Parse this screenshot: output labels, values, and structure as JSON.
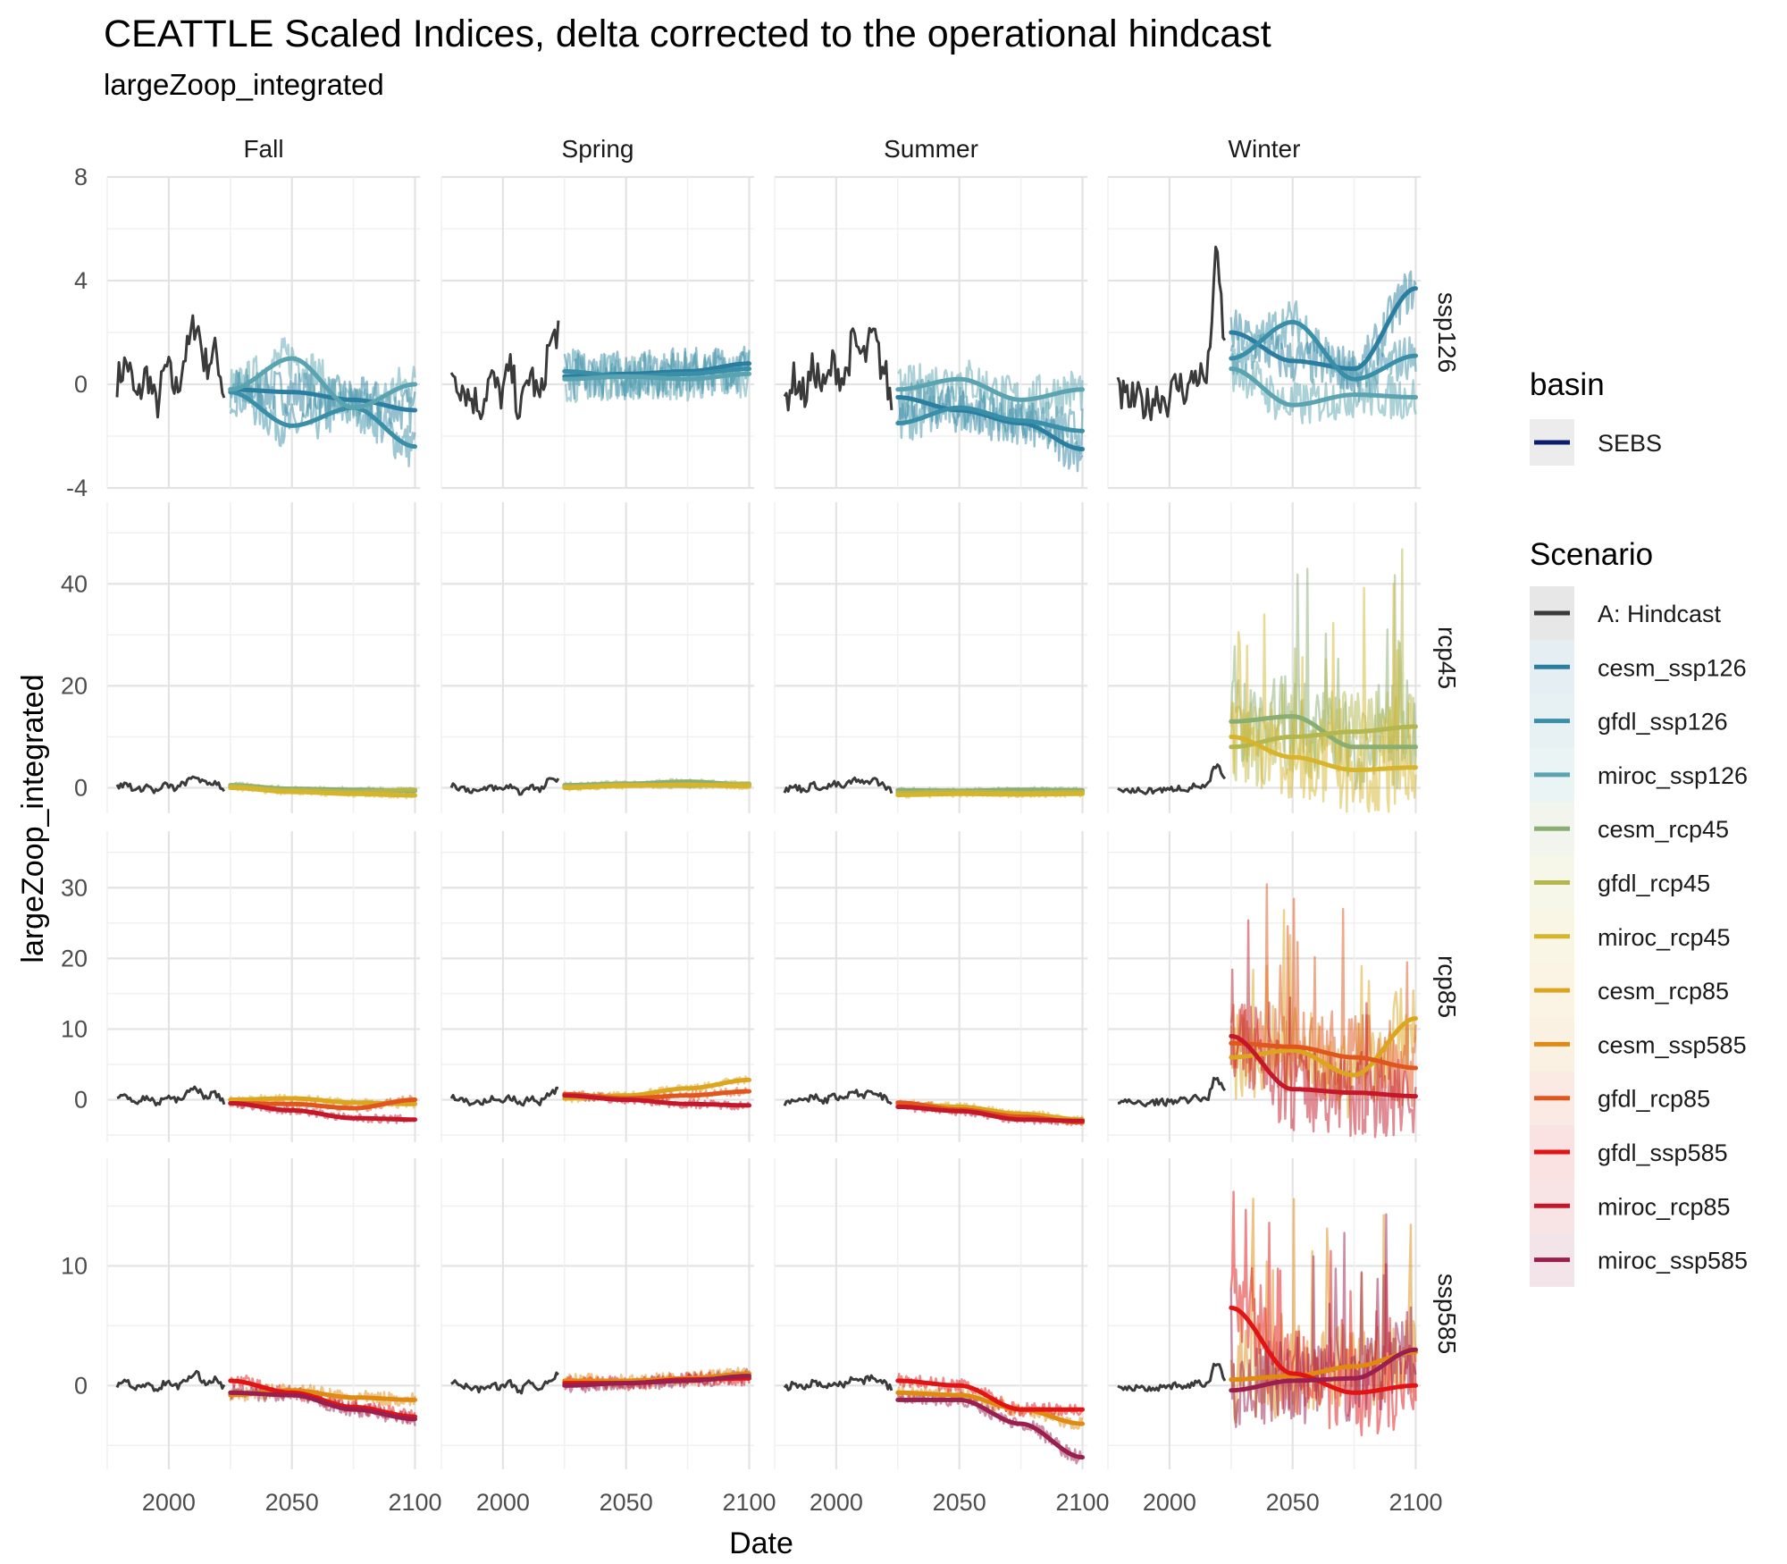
{
  "chart_data": {
    "type": "line",
    "title": "CEATTLE Scaled Indices, delta corrected to the operational hindcast",
    "subtitle": "largeZoop_integrated",
    "xlabel": "Date",
    "ylabel": "largeZoop_integrated",
    "grid": true,
    "legend_placement": "right",
    "facet_cols": [
      "Fall",
      "Spring",
      "Summer",
      "Winter"
    ],
    "facet_rows": [
      "ssp126",
      "rcp45",
      "rcp85",
      "ssp585"
    ],
    "xlim": [
      1975,
      2102
    ],
    "x_ticks": [
      2000,
      2050,
      2100
    ],
    "row_axes": {
      "ssp126": {
        "ylim": [
          -4,
          8
        ],
        "ticks": [
          -4,
          0,
          4,
          8
        ],
        "tick_labels": [
          "-4",
          "0",
          "4",
          "8"
        ]
      },
      "rcp45": {
        "ylim": [
          -5,
          56
        ],
        "ticks": [
          0,
          20,
          40
        ],
        "tick_labels": [
          "0",
          "20",
          "40"
        ]
      },
      "rcp85": {
        "ylim": [
          -6,
          38
        ],
        "ticks": [
          0,
          10,
          20,
          30
        ],
        "tick_labels": [
          "0",
          "10",
          "20",
          "30"
        ]
      },
      "ssp585": {
        "ylim": [
          -7,
          19
        ],
        "ticks": [
          0,
          10
        ],
        "tick_labels": [
          "0",
          "10"
        ]
      }
    },
    "legend_basin": {
      "title": "basin",
      "entries": [
        {
          "label": "SEBS",
          "color": "#0b1e6e"
        }
      ]
    },
    "legend_scenario": {
      "title": "Scenario",
      "entries": [
        {
          "label": "A: Hindcast",
          "color": "#3a3a3a"
        },
        {
          "label": "cesm_ssp126",
          "color": "#2a7fa0"
        },
        {
          "label": "gfdl_ssp126",
          "color": "#3a8fa8"
        },
        {
          "label": "miroc_ssp126",
          "color": "#5aa3b0"
        },
        {
          "label": "cesm_rcp45",
          "color": "#8aad72"
        },
        {
          "label": "gfdl_rcp45",
          "color": "#b3b74e"
        },
        {
          "label": "miroc_rcp45",
          "color": "#d6b52c"
        },
        {
          "label": "cesm_rcp85",
          "color": "#dca51e"
        },
        {
          "label": "cesm_ssp585",
          "color": "#e08a12"
        },
        {
          "label": "gfdl_rcp85",
          "color": "#e0561c"
        },
        {
          "label": "gfdl_ssp585",
          "color": "#e01414"
        },
        {
          "label": "miroc_rcp85",
          "color": "#c4182a"
        },
        {
          "label": "miroc_ssp585",
          "color": "#9a1e4e"
        }
      ]
    },
    "hindcast": {
      "Fall": {
        "x": [
          1979,
          1983,
          1987,
          1991,
          1995,
          1999,
          2003,
          2007,
          2011,
          2015,
          2019,
          2023
        ],
        "y": [
          0.2,
          0.8,
          -0.6,
          0.4,
          -0.8,
          0.6,
          -0.2,
          1.2,
          2.4,
          0.8,
          1.2,
          -0.4
        ]
      },
      "Spring": {
        "x": [
          1979,
          1983,
          1987,
          1991,
          1995,
          1999,
          2003,
          2007,
          2011,
          2015,
          2019,
          2023
        ],
        "y": [
          0.6,
          0.0,
          -0.5,
          -0.8,
          0.2,
          -0.4,
          0.5,
          -1.0,
          0.4,
          -0.6,
          1.5,
          2.2
        ]
      },
      "Summer": {
        "x": [
          1979,
          1983,
          1987,
          1991,
          1995,
          1999,
          2003,
          2007,
          2011,
          2015,
          2019,
          2023
        ],
        "y": [
          -0.6,
          0.2,
          -0.4,
          0.6,
          -0.2,
          0.8,
          0.2,
          1.6,
          1.0,
          1.8,
          0.6,
          -0.8
        ]
      },
      "Winter": {
        "x": [
          1979,
          1983,
          1987,
          1991,
          1995,
          1999,
          2003,
          2007,
          2011,
          2015,
          2019,
          2023
        ],
        "y": [
          -0.4,
          -0.6,
          -0.6,
          -0.8,
          -0.4,
          -0.6,
          0.0,
          -0.2,
          0.4,
          0.2,
          4.7,
          1.4
        ]
      }
    },
    "trends": {
      "ssp126": {
        "Fall": [
          {
            "name": "cesm_ssp126",
            "x": [
              2025,
              2050,
              2075,
              2100
            ],
            "y": [
              -0.2,
              -0.3,
              -0.6,
              -1.0
            ]
          },
          {
            "name": "gfdl_ssp126",
            "x": [
              2025,
              2050,
              2075,
              2100
            ],
            "y": [
              -0.3,
              -1.6,
              -0.9,
              -2.4
            ]
          },
          {
            "name": "miroc_ssp126",
            "x": [
              2025,
              2050,
              2075,
              2100
            ],
            "y": [
              -0.2,
              1.0,
              -0.9,
              0.0
            ]
          }
        ],
        "Spring": [
          {
            "name": "cesm_ssp126",
            "x": [
              2025,
              2050,
              2075,
              2100
            ],
            "y": [
              0.3,
              0.4,
              0.5,
              0.8
            ]
          },
          {
            "name": "gfdl_ssp126",
            "x": [
              2025,
              2050,
              2075,
              2100
            ],
            "y": [
              0.5,
              0.3,
              0.4,
              0.6
            ]
          },
          {
            "name": "miroc_ssp126",
            "x": [
              2025,
              2050,
              2075,
              2100
            ],
            "y": [
              0.2,
              0.3,
              0.2,
              0.4
            ]
          }
        ],
        "Summer": [
          {
            "name": "cesm_ssp126",
            "x": [
              2025,
              2050,
              2075,
              2100
            ],
            "y": [
              -0.5,
              -1.0,
              -1.5,
              -2.5
            ]
          },
          {
            "name": "gfdl_ssp126",
            "x": [
              2025,
              2050,
              2075,
              2100
            ],
            "y": [
              -1.5,
              -0.9,
              -1.4,
              -1.8
            ]
          },
          {
            "name": "miroc_ssp126",
            "x": [
              2025,
              2050,
              2075,
              2100
            ],
            "y": [
              -0.2,
              0.2,
              -0.6,
              -0.2
            ]
          }
        ],
        "Winter": [
          {
            "name": "cesm_ssp126",
            "x": [
              2025,
              2050,
              2075,
              2100
            ],
            "y": [
              2.0,
              0.9,
              0.6,
              3.7
            ]
          },
          {
            "name": "gfdl_ssp126",
            "x": [
              2025,
              2050,
              2075,
              2100
            ],
            "y": [
              1.0,
              2.4,
              0.2,
              1.1
            ]
          },
          {
            "name": "miroc_ssp126",
            "x": [
              2025,
              2050,
              2075,
              2100
            ],
            "y": [
              0.6,
              -0.8,
              -0.4,
              -0.5
            ]
          }
        ]
      },
      "rcp45": {
        "Fall": [
          {
            "name": "cesm_rcp45",
            "x": [
              2025,
              2050,
              2075,
              2100
            ],
            "y": [
              0.5,
              -0.2,
              -0.4,
              -0.6
            ]
          },
          {
            "name": "gfdl_rcp45",
            "x": [
              2025,
              2050,
              2075,
              2100
            ],
            "y": [
              0.3,
              -0.5,
              -0.8,
              -0.4
            ]
          },
          {
            "name": "miroc_rcp45",
            "x": [
              2025,
              2050,
              2075,
              2100
            ],
            "y": [
              0.0,
              -0.8,
              -1.2,
              -1.5
            ]
          }
        ],
        "Spring": [
          {
            "name": "cesm_rcp45",
            "x": [
              2025,
              2050,
              2075,
              2100
            ],
            "y": [
              0.5,
              0.8,
              1.2,
              0.6
            ]
          },
          {
            "name": "gfdl_rcp45",
            "x": [
              2025,
              2050,
              2075,
              2100
            ],
            "y": [
              0.2,
              0.6,
              0.4,
              0.8
            ]
          },
          {
            "name": "miroc_rcp45",
            "x": [
              2025,
              2050,
              2075,
              2100
            ],
            "y": [
              0.0,
              0.4,
              0.6,
              0.3
            ]
          }
        ],
        "Summer": [
          {
            "name": "cesm_rcp45",
            "x": [
              2025,
              2050,
              2075,
              2100
            ],
            "y": [
              -0.5,
              -0.6,
              -0.4,
              -0.5
            ]
          },
          {
            "name": "gfdl_rcp45",
            "x": [
              2025,
              2050,
              2075,
              2100
            ],
            "y": [
              -1.0,
              -0.8,
              -1.0,
              -0.8
            ]
          },
          {
            "name": "miroc_rcp45",
            "x": [
              2025,
              2050,
              2075,
              2100
            ],
            "y": [
              -1.4,
              -1.2,
              -1.3,
              -1.2
            ]
          }
        ],
        "Winter": [
          {
            "name": "cesm_rcp45",
            "x": [
              2025,
              2050,
              2075,
              2100
            ],
            "y": [
              13,
              14,
              8,
              8
            ]
          },
          {
            "name": "gfdl_rcp45",
            "x": [
              2025,
              2050,
              2075,
              2100
            ],
            "y": [
              8,
              10,
              11,
              12
            ]
          },
          {
            "name": "miroc_rcp45",
            "x": [
              2025,
              2050,
              2075,
              2100
            ],
            "y": [
              10,
              6,
              3.5,
              4
            ]
          }
        ]
      },
      "rcp85": {
        "Fall": [
          {
            "name": "cesm_rcp85",
            "x": [
              2025,
              2050,
              2075,
              2100
            ],
            "y": [
              0.0,
              0.2,
              -0.4,
              -0.6
            ]
          },
          {
            "name": "gfdl_rcp85",
            "x": [
              2025,
              2050,
              2075,
              2100
            ],
            "y": [
              -0.5,
              -0.6,
              -1.2,
              0.0
            ]
          },
          {
            "name": "miroc_rcp85",
            "x": [
              2025,
              2050,
              2075,
              2100
            ],
            "y": [
              -0.5,
              -1.5,
              -2.6,
              -2.8
            ]
          }
        ],
        "Spring": [
          {
            "name": "cesm_rcp85",
            "x": [
              2025,
              2050,
              2075,
              2100
            ],
            "y": [
              0.2,
              0.6,
              1.6,
              2.8
            ]
          },
          {
            "name": "gfdl_rcp85",
            "x": [
              2025,
              2050,
              2075,
              2100
            ],
            "y": [
              0.8,
              0.2,
              0.6,
              1.2
            ]
          },
          {
            "name": "miroc_rcp85",
            "x": [
              2025,
              2050,
              2075,
              2100
            ],
            "y": [
              0.6,
              0.0,
              -0.6,
              -0.8
            ]
          }
        ],
        "Summer": [
          {
            "name": "cesm_rcp85",
            "x": [
              2025,
              2050,
              2075,
              2100
            ],
            "y": [
              -0.6,
              -1.0,
              -2.0,
              -2.8
            ]
          },
          {
            "name": "gfdl_rcp85",
            "x": [
              2025,
              2050,
              2075,
              2100
            ],
            "y": [
              -0.4,
              -1.4,
              -2.4,
              -3.2
            ]
          },
          {
            "name": "miroc_rcp85",
            "x": [
              2025,
              2050,
              2075,
              2100
            ],
            "y": [
              -1.0,
              -1.6,
              -2.8,
              -3.0
            ]
          }
        ],
        "Winter": [
          {
            "name": "cesm_rcp85",
            "x": [
              2025,
              2050,
              2075,
              2100
            ],
            "y": [
              6,
              7,
              3.5,
              11.5
            ]
          },
          {
            "name": "gfdl_rcp85",
            "x": [
              2025,
              2050,
              2075,
              2100
            ],
            "y": [
              8,
              7.5,
              6,
              4.5
            ]
          },
          {
            "name": "miroc_rcp85",
            "x": [
              2025,
              2050,
              2075,
              2100
            ],
            "y": [
              9,
              1.5,
              1.0,
              0.5
            ]
          }
        ]
      },
      "ssp585": {
        "Fall": [
          {
            "name": "cesm_ssp585",
            "x": [
              2025,
              2050,
              2075,
              2100
            ],
            "y": [
              -0.8,
              -0.4,
              -1.0,
              -1.2
            ]
          },
          {
            "name": "gfdl_ssp585",
            "x": [
              2025,
              2050,
              2075,
              2100
            ],
            "y": [
              0.4,
              -0.6,
              -1.8,
              -2.6
            ]
          },
          {
            "name": "miroc_ssp585",
            "x": [
              2025,
              2050,
              2075,
              2100
            ],
            "y": [
              -0.6,
              -0.8,
              -2.0,
              -2.8
            ]
          }
        ],
        "Spring": [
          {
            "name": "cesm_ssp585",
            "x": [
              2025,
              2050,
              2075,
              2100
            ],
            "y": [
              0.4,
              0.4,
              0.6,
              1.0
            ]
          },
          {
            "name": "gfdl_ssp585",
            "x": [
              2025,
              2050,
              2075,
              2100
            ],
            "y": [
              0.2,
              0.2,
              0.5,
              0.6
            ]
          },
          {
            "name": "miroc_ssp585",
            "x": [
              2025,
              2050,
              2075,
              2100
            ],
            "y": [
              0.0,
              0.2,
              0.4,
              0.8
            ]
          }
        ],
        "Summer": [
          {
            "name": "cesm_ssp585",
            "x": [
              2025,
              2050,
              2075,
              2100
            ],
            "y": [
              -0.6,
              -0.8,
              -2.0,
              -3.2
            ]
          },
          {
            "name": "gfdl_ssp585",
            "x": [
              2025,
              2050,
              2075,
              2100
            ],
            "y": [
              0.4,
              0.0,
              -2.0,
              -2.0
            ]
          },
          {
            "name": "miroc_ssp585",
            "x": [
              2025,
              2050,
              2075,
              2100
            ],
            "y": [
              -1.2,
              -1.2,
              -3.2,
              -6.0
            ]
          }
        ],
        "Winter": [
          {
            "name": "cesm_ssp585",
            "x": [
              2025,
              2050,
              2075,
              2100
            ],
            "y": [
              0.5,
              0.8,
              1.6,
              2.8
            ]
          },
          {
            "name": "gfdl_ssp585",
            "x": [
              2025,
              2050,
              2075,
              2100
            ],
            "y": [
              6.5,
              1.0,
              -0.6,
              0.0
            ]
          },
          {
            "name": "miroc_ssp585",
            "x": [
              2025,
              2050,
              2075,
              2100
            ],
            "y": [
              -0.4,
              0.4,
              0.6,
              3.0
            ]
          }
        ]
      }
    }
  }
}
